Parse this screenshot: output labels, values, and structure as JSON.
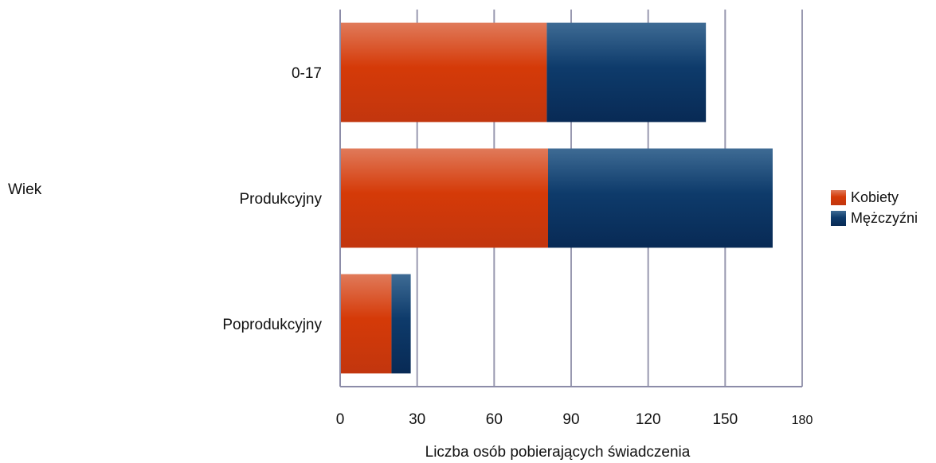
{
  "chart_data": {
    "type": "bar",
    "orientation": "horizontal",
    "stacked": true,
    "categories": [
      "0-17",
      "Produkcyjny",
      "Poprodukcyjny"
    ],
    "series": [
      {
        "name": "Kobiety",
        "values": [
          80.5,
          81,
          20
        ]
      },
      {
        "name": "Mężczyźni",
        "values": [
          62,
          87.5,
          7.5
        ]
      }
    ],
    "xlabel": "Liczba osób pobierających świadczenia",
    "ylabel": "Wiek",
    "xlim": [
      0,
      180
    ],
    "xticks": [
      "0",
      "30",
      "60",
      "90",
      "120",
      "150",
      "180"
    ],
    "grid": true,
    "legend_position": "right",
    "colors": {
      "Kobiety": "#d03a0a",
      "Mężczyźni": "#0d3a6b",
      "grid": "#9999b0"
    }
  }
}
